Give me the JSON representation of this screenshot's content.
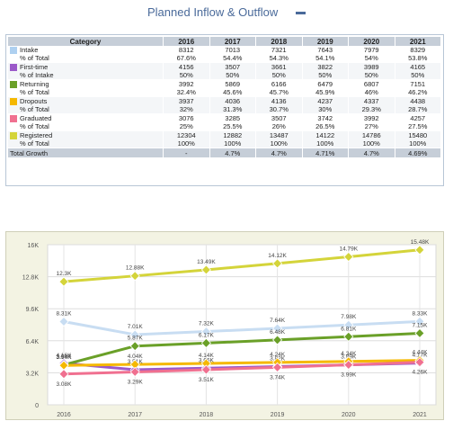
{
  "header": {
    "title": "Planned Inflow & Outflow"
  },
  "table": {
    "headers": [
      "Category",
      "2016",
      "2017",
      "2018",
      "2019",
      "2020",
      "2021"
    ],
    "rows": [
      {
        "color": "#aed0f0",
        "label": "Intake",
        "sublabel": "% of Total",
        "values": [
          "8312",
          "7013",
          "7321",
          "7643",
          "7979",
          "8329"
        ],
        "pcts": [
          "67.6%",
          "54.4%",
          "54.3%",
          "54.1%",
          "54%",
          "53.8%"
        ]
      },
      {
        "color": "#9b59c9",
        "label": "First-time",
        "sublabel": "% of Intake",
        "values": [
          "4156",
          "3507",
          "3661",
          "3822",
          "3989",
          "4165"
        ],
        "pcts": [
          "50%",
          "50%",
          "50%",
          "50%",
          "50%",
          "50%"
        ]
      },
      {
        "color": "#6aa028",
        "label": "Returning",
        "sublabel": "% of Total",
        "values": [
          "3992",
          "5869",
          "6166",
          "6479",
          "6807",
          "7151"
        ],
        "pcts": [
          "32.4%",
          "45.6%",
          "45.7%",
          "45.9%",
          "46%",
          "46.2%"
        ]
      },
      {
        "color": "#f5b800",
        "label": "Dropouts",
        "sublabel": "% of Total",
        "values": [
          "3937",
          "4036",
          "4136",
          "4237",
          "4337",
          "4438"
        ],
        "pcts": [
          "32%",
          "31.3%",
          "30.7%",
          "30%",
          "29.3%",
          "28.7%"
        ]
      },
      {
        "color": "#f07090",
        "label": "Graduated",
        "sublabel": "% of Total",
        "values": [
          "3076",
          "3285",
          "3507",
          "3742",
          "3992",
          "4257"
        ],
        "pcts": [
          "25%",
          "25.5%",
          "26%",
          "26.5%",
          "27%",
          "27.5%"
        ]
      },
      {
        "color": "#d4d43a",
        "label": "Registered",
        "sublabel": "% of Total",
        "values": [
          "12304",
          "12882",
          "13487",
          "14122",
          "14786",
          "15480"
        ],
        "pcts": [
          "100%",
          "100%",
          "100%",
          "100%",
          "100%",
          "100%"
        ]
      }
    ],
    "total": {
      "label": "Total Growth",
      "values": [
        "-",
        "4.7%",
        "4.7%",
        "4.71%",
        "4.7%",
        "4.69%"
      ]
    }
  },
  "chart_data": {
    "type": "line",
    "x": [
      "2016",
      "2017",
      "2018",
      "2019",
      "2020",
      "2021"
    ],
    "ylim": [
      0,
      16000
    ],
    "yticks": [
      "0",
      "3.2K",
      "6.4K",
      "9.6K",
      "12.8K",
      "16K"
    ],
    "grid": true,
    "series": [
      {
        "name": "Intake",
        "color": "#c8ddf2",
        "values": [
          8312,
          7013,
          7321,
          7643,
          7979,
          8329
        ],
        "labels": [
          "8.31K",
          "7.01K",
          "7.32K",
          "7.64K",
          "7.98K",
          "8.33K"
        ]
      },
      {
        "name": "First-time",
        "color": "#9b59c9",
        "values": [
          4156,
          3507,
          3661,
          3822,
          3989,
          4165
        ],
        "labels": [
          "4.16K",
          "3.51K",
          "3.66K",
          "3.82K",
          "3.99K",
          "4.17K"
        ]
      },
      {
        "name": "Returning",
        "color": "#6aa028",
        "values": [
          3992,
          5869,
          6166,
          6479,
          6807,
          7151
        ],
        "labels": [
          "3.99K",
          "5.87K",
          "6.17K",
          "6.48K",
          "6.81K",
          "7.15K"
        ]
      },
      {
        "name": "Dropouts",
        "color": "#f5b800",
        "values": [
          3937,
          4036,
          4136,
          4237,
          4337,
          4438
        ],
        "labels": [
          "3.94K",
          "4.04K",
          "4.14K",
          "4.24K",
          "4.34K",
          "4.44K"
        ]
      },
      {
        "name": "Graduated",
        "color": "#f07090",
        "values": [
          3076,
          3285,
          3507,
          3742,
          3992,
          4257
        ],
        "labels": [
          "3.08K",
          "3.29K",
          "3.51K",
          "3.74K",
          "3.99K",
          "4.26K"
        ]
      },
      {
        "name": "Registered",
        "color": "#d4d43a",
        "values": [
          12304,
          12882,
          13487,
          14122,
          14786,
          15480
        ],
        "labels": [
          "12.3K",
          "12.88K",
          "13.49K",
          "14.12K",
          "14.79K",
          "15.48K"
        ]
      }
    ]
  }
}
